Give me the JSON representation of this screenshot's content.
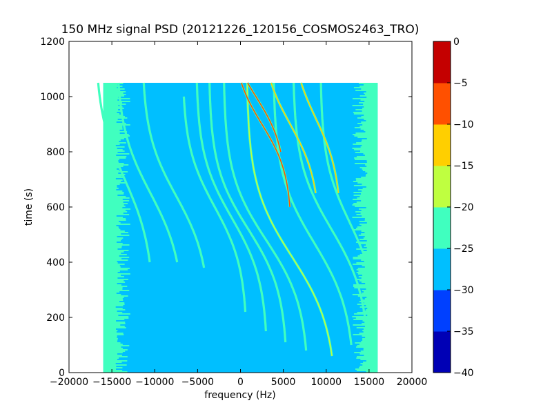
{
  "chart_data": {
    "type": "heatmap",
    "title": "150 MHz signal PSD (20121226_120156_COSMOS2463_TRO)",
    "xlabel": "frequency (Hz)",
    "ylabel": "time (s)",
    "xlim": [
      -20000,
      20000
    ],
    "ylim": [
      0,
      1200
    ],
    "x_ticks": [
      -20000,
      -15000,
      -10000,
      -5000,
      0,
      5000,
      10000,
      15000,
      20000
    ],
    "y_ticks": [
      0,
      200,
      400,
      600,
      800,
      1000,
      1200
    ],
    "x_tick_labels": [
      "−20000",
      "−15000",
      "−10000",
      "−5000",
      "0",
      "5000",
      "10000",
      "15000",
      "20000"
    ],
    "y_tick_labels": [
      "0",
      "200",
      "400",
      "600",
      "800",
      "1000",
      "1200"
    ],
    "data_extent": {
      "x": [
        -16000,
        16000
      ],
      "y": [
        0,
        1050
      ]
    },
    "background_level": -27.5,
    "edge_level": -22.5,
    "colorbar": {
      "levels": [
        -40,
        -35,
        -30,
        -25,
        -20,
        -15,
        -10,
        -5,
        0
      ],
      "tick_labels": [
        "−40",
        "−35",
        "−30",
        "−25",
        "−20",
        "−15",
        "−10",
        "−5",
        "0"
      ],
      "colors": [
        "#0000b5",
        "#0040ff",
        "#00bfff",
        "#40ffbf",
        "#bfff40",
        "#ffcf00",
        "#ff5000",
        "#c40000"
      ]
    },
    "tracks": [
      {
        "f0": 6000,
        "t_mid": 420,
        "amp": 5300,
        "w": 260,
        "t_range": [
          60,
          1050
        ],
        "level": -15
      },
      {
        "f0": 3000,
        "t_mid": 480,
        "amp": 5000,
        "w": 240,
        "t_range": [
          80,
          1050
        ],
        "level": -20
      },
      {
        "f0": 900,
        "t_mid": 520,
        "amp": 4600,
        "w": 230,
        "t_range": [
          110,
          1050
        ],
        "level": -20
      },
      {
        "f0": -1000,
        "t_mid": 560,
        "amp": 4200,
        "w": 230,
        "t_range": [
          150,
          1050
        ],
        "level": -20
      },
      {
        "f0": -3000,
        "t_mid": 600,
        "amp": 3800,
        "w": 220,
        "t_range": [
          220,
          1000
        ],
        "level": -20
      },
      {
        "f0": 8600,
        "t_mid": 470,
        "amp": 4800,
        "w": 250,
        "t_range": [
          100,
          1050
        ],
        "level": -20
      },
      {
        "f0": 10600,
        "t_mid": 520,
        "amp": 4500,
        "w": 240,
        "t_range": [
          60,
          1050
        ],
        "level": -20
      },
      {
        "f0": 12800,
        "t_mid": 540,
        "amp": 3500,
        "w": 230,
        "t_range": [
          300,
          1050
        ],
        "level": -20
      },
      {
        "f0": -7500,
        "t_mid": 640,
        "amp": 4000,
        "w": 230,
        "t_range": [
          380,
          1050
        ],
        "level": -20
      },
      {
        "f0": -10500,
        "t_mid": 650,
        "amp": 4000,
        "w": 240,
        "t_range": [
          400,
          1050
        ],
        "level": -20
      },
      {
        "f0": -13500,
        "t_mid": 700,
        "amp": 3500,
        "w": 250,
        "t_range": [
          400,
          1050
        ],
        "level": -20
      },
      {
        "f0": 2500,
        "t_mid": 900,
        "amp": 3500,
        "w": 180,
        "t_range": [
          600,
          1050
        ],
        "level": -5
      },
      {
        "f0": 5800,
        "t_mid": 900,
        "amp": 3500,
        "w": 200,
        "t_range": [
          650,
          1050
        ],
        "level": -10
      },
      {
        "f0": 8800,
        "t_mid": 920,
        "amp": 3000,
        "w": 200,
        "t_range": [
          650,
          1050
        ],
        "level": -10
      },
      {
        "f0": 1800,
        "t_mid": 1000,
        "amp": 3600,
        "w": 180,
        "t_range": [
          800,
          1050
        ],
        "level": -5
      }
    ],
    "grid": false,
    "legend": "colorbar-right"
  }
}
